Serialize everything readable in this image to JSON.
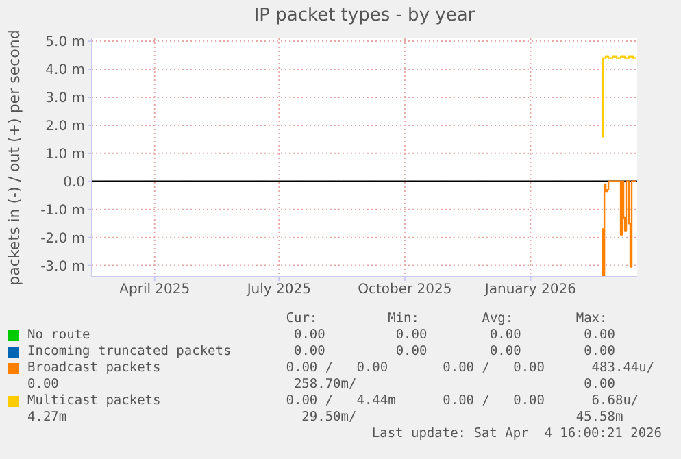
{
  "chart_data": {
    "type": "step",
    "title": "IP packet types - by year",
    "ylabel": "packets in (-) / out (+) per second",
    "xlim": [
      "2025-02-14",
      "2026-03-20"
    ],
    "xticks": [
      {
        "value": "2025-04-01",
        "label": "April 2025"
      },
      {
        "value": "2025-07-01",
        "label": "July 2025"
      },
      {
        "value": "2025-10-01",
        "label": "October 2025"
      },
      {
        "value": "2026-01-01",
        "label": "January 2026"
      }
    ],
    "ylim": [
      -3.4,
      5.1
    ],
    "yticks": [
      {
        "value": -3,
        "label": "-3.0 m"
      },
      {
        "value": -2,
        "label": "-2.0 m"
      },
      {
        "value": -1,
        "label": "-1.0 m"
      },
      {
        "value": 0,
        "label": "0.0"
      },
      {
        "value": 1,
        "label": "1.0 m"
      },
      {
        "value": 2,
        "label": "2.0 m"
      },
      {
        "value": 3,
        "label": "3.0 m"
      },
      {
        "value": 4,
        "label": "4.0 m"
      },
      {
        "value": 5,
        "label": "5.0 m"
      }
    ],
    "grid": true,
    "legend": "bottom",
    "ref_lines": [
      {
        "axis": "y",
        "value": 0,
        "color": "#000000"
      }
    ],
    "series": [
      {
        "name": "No route",
        "color": "#00cc00"
      },
      {
        "name": "Incoming truncated packets",
        "color": "#0066b3"
      },
      {
        "name": "Broadcast packets",
        "color": "#ff8000",
        "x": [
          "2026-02-22",
          "2026-02-23",
          "2026-02-24",
          "2026-02-25",
          "2026-02-26",
          "2026-02-27",
          "2026-03-07",
          "2026-03-08",
          "2026-03-09",
          "2026-03-10",
          "2026-03-11",
          "2026-03-12",
          "2026-03-14",
          "2026-03-15",
          "2026-03-16",
          "2026-03-19"
        ],
        "values": [
          -1.7,
          -3.4,
          -0.1,
          -0.35,
          -0.3,
          0,
          0,
          -1.9,
          0,
          -1.3,
          -1.75,
          0,
          -1.5,
          -3.05,
          0,
          0
        ]
      },
      {
        "name": "Multicast packets",
        "color": "#ffcc00",
        "x": [
          "2026-02-22",
          "2026-02-23",
          "2026-02-25",
          "2026-02-27",
          "2026-03-02",
          "2026-03-05",
          "2026-03-08",
          "2026-03-11",
          "2026-03-14",
          "2026-03-17",
          "2026-03-19"
        ],
        "values": [
          1.6,
          4.4,
          4.45,
          4.4,
          4.45,
          4.4,
          4.45,
          4.4,
          4.45,
          4.4,
          4.4
        ]
      }
    ],
    "annotations": [
      "   Cur:         Min:        Avg:        Max:",
      "    0.00         0.00        0.00        0.00",
      "    0.00         0.00        0.00        0.00",
      "   0.00 /   0.00       0.00 /   0.00      483.44u/",
      "0.00                              258.70m/                             0.00",
      "   0.00 /   4.44m      0.00 /   0.00      6.68u/",
      "4.27m                              29.50m/                            45.58m",
      "Last update: Sat Apr  4 16:00:21 2026"
    ]
  }
}
